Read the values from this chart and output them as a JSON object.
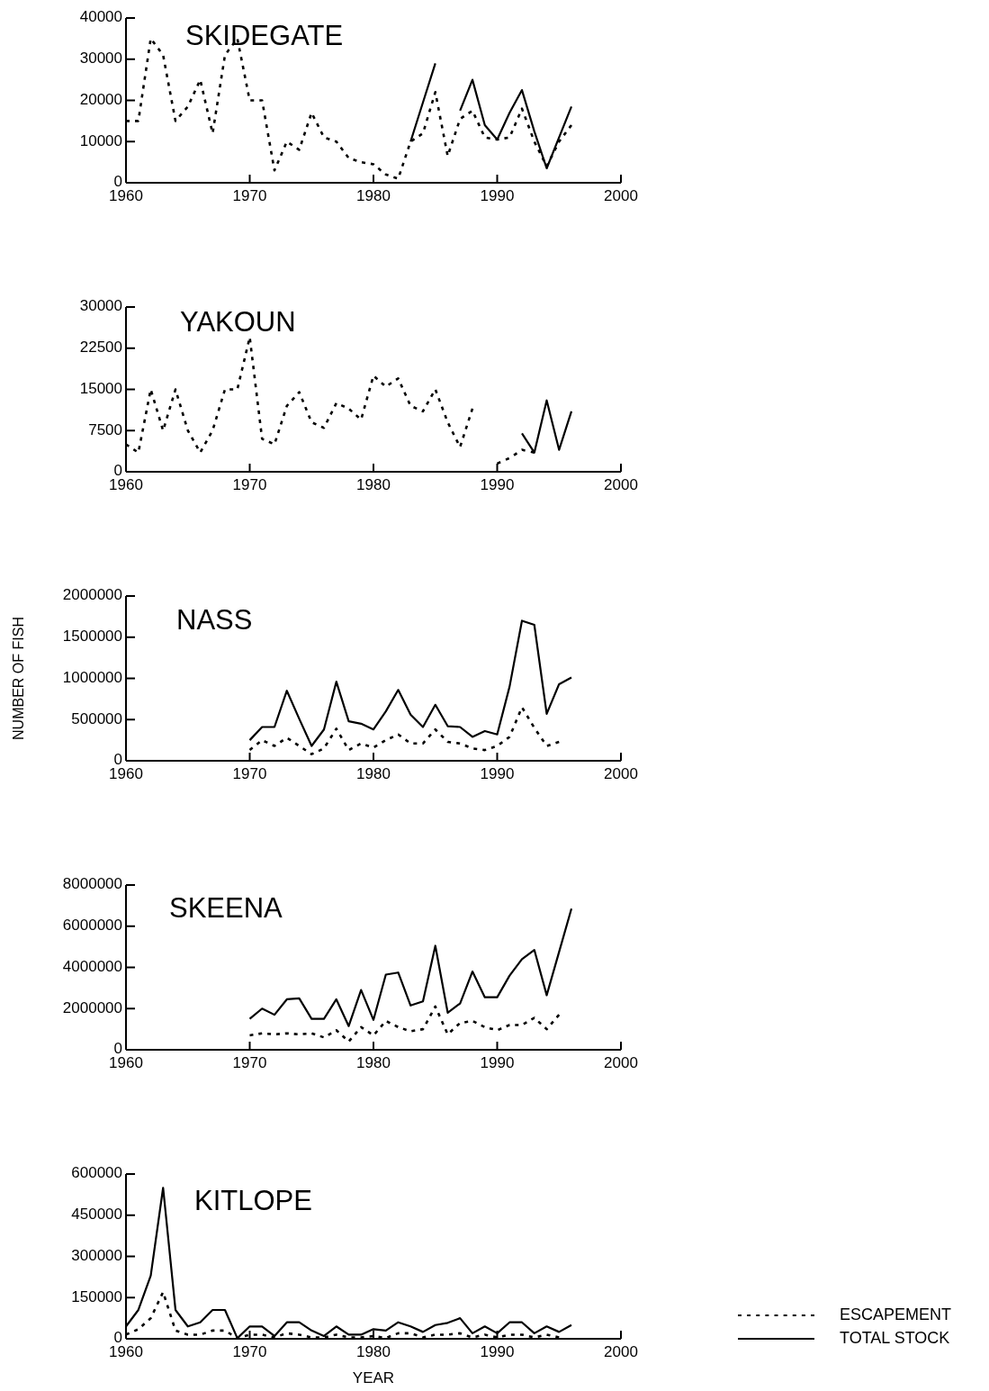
{
  "chart_data": [
    {
      "type": "line",
      "title": "SKIDEGATE",
      "x": [
        1960,
        1961,
        1962,
        1963,
        1964,
        1965,
        1966,
        1967,
        1968,
        1969,
        1970,
        1971,
        1972,
        1973,
        1974,
        1975,
        1976,
        1977,
        1978,
        1979,
        1980,
        1981,
        1982,
        1983,
        1984,
        1985,
        1986,
        1987,
        1988,
        1989,
        1990,
        1991,
        1992,
        1993,
        1994,
        1995,
        1996
      ],
      "series": [
        {
          "color": "#000000",
          "line_style": "dashed",
          "values": [
            15000,
            15000,
            35000,
            31000,
            15000,
            18500,
            25000,
            12000,
            31000,
            35000,
            20000,
            20000,
            3000,
            10000,
            8000,
            17000,
            11000,
            10000,
            6000,
            5000,
            4500,
            2000,
            1000,
            10000,
            12000,
            22000,
            6500,
            15500,
            17500,
            11000,
            10500,
            11000,
            18000,
            10000,
            4000,
            10000,
            14000
          ]
        },
        {
          "color": "#000000",
          "line_style": "solid",
          "values": [
            null,
            null,
            null,
            null,
            null,
            null,
            null,
            null,
            null,
            null,
            null,
            null,
            null,
            null,
            null,
            null,
            null,
            null,
            null,
            null,
            null,
            null,
            null,
            10000,
            19500,
            29000,
            null,
            17500,
            25000,
            14000,
            10500,
            17000,
            22500,
            12500,
            3500,
            11000,
            18500
          ]
        }
      ],
      "xlim": [
        1960,
        2000
      ],
      "xticks": [
        1960,
        1970,
        1980,
        1990,
        2000
      ],
      "ylim": [
        0,
        40000
      ],
      "yticks": [
        0,
        10000,
        20000,
        30000,
        40000
      ]
    },
    {
      "type": "line",
      "title": "YAKOUN",
      "series": [
        {
          "color": "#000000",
          "line_style": "dashed",
          "x": [
            1960,
            1961,
            1962,
            1963,
            1964,
            1965,
            1966,
            1967,
            1968,
            1969,
            1970,
            1971,
            1972,
            1973,
            1974,
            1975,
            1976,
            1977,
            1978,
            1979,
            1980,
            1981,
            1982,
            1983,
            1984,
            1985,
            1986,
            1987,
            1988
          ],
          "values": [
            5000,
            3500,
            15000,
            7500,
            15000,
            7500,
            3500,
            7500,
            15000,
            15000,
            24500,
            6000,
            5000,
            12000,
            14500,
            9000,
            8000,
            12500,
            11500,
            9500,
            17500,
            15500,
            17000,
            12000,
            11000,
            15000,
            9000,
            4500,
            11500
          ]
        },
        {
          "color": "#000000",
          "line_style": "dashed",
          "x": [
            1990,
            1991,
            1992,
            1993
          ],
          "values": [
            1500,
            2500,
            4000,
            3500
          ]
        },
        {
          "color": "#000000",
          "line_style": "solid",
          "x": [
            1992,
            1993,
            1994,
            1995,
            1996
          ],
          "values": [
            7000,
            3500,
            13000,
            4000,
            11000
          ]
        }
      ],
      "xlim": [
        1960,
        2000
      ],
      "xticks": [
        1960,
        1970,
        1980,
        1990,
        2000
      ],
      "ylim": [
        0,
        30000
      ],
      "yticks": [
        0,
        7500,
        15000,
        22500,
        30000
      ]
    },
    {
      "type": "line",
      "title": "NASS",
      "ylabel": "NUMBER OF FISH",
      "x": [
        1970,
        1971,
        1972,
        1973,
        1974,
        1975,
        1976,
        1977,
        1978,
        1979,
        1980,
        1981,
        1982,
        1983,
        1984,
        1985,
        1986,
        1987,
        1988,
        1989,
        1990,
        1991,
        1992,
        1993,
        1994,
        1995,
        1996
      ],
      "series": [
        {
          "color": "#000000",
          "line_style": "dashed",
          "values": [
            130000,
            250000,
            180000,
            280000,
            180000,
            80000,
            150000,
            390000,
            130000,
            210000,
            160000,
            250000,
            320000,
            210000,
            210000,
            380000,
            230000,
            210000,
            150000,
            130000,
            180000,
            290000,
            650000,
            400000,
            180000,
            230000,
            null
          ]
        },
        {
          "color": "#000000",
          "line_style": "solid",
          "values": [
            250000,
            410000,
            410000,
            850000,
            510000,
            180000,
            380000,
            960000,
            480000,
            450000,
            380000,
            600000,
            860000,
            560000,
            410000,
            680000,
            420000,
            410000,
            290000,
            360000,
            320000,
            900000,
            1700000,
            1650000,
            570000,
            930000,
            1010000
          ]
        }
      ],
      "xlim": [
        1960,
        2000
      ],
      "xticks": [
        1960,
        1970,
        1980,
        1990,
        2000
      ],
      "ylim": [
        0,
        2000000
      ],
      "yticks": [
        0,
        500000,
        1000000,
        1500000,
        2000000
      ]
    },
    {
      "type": "line",
      "title": "SKEENA",
      "x": [
        1970,
        1971,
        1972,
        1973,
        1974,
        1975,
        1976,
        1977,
        1978,
        1979,
        1980,
        1981,
        1982,
        1983,
        1984,
        1985,
        1986,
        1987,
        1988,
        1989,
        1990,
        1991,
        1992,
        1993,
        1994,
        1995,
        1996
      ],
      "series": [
        {
          "color": "#000000",
          "line_style": "dashed",
          "values": [
            700000,
            800000,
            750000,
            800000,
            750000,
            800000,
            600000,
            950000,
            400000,
            1100000,
            700000,
            1400000,
            1100000,
            900000,
            1000000,
            2100000,
            750000,
            1300000,
            1400000,
            1100000,
            950000,
            1200000,
            1200000,
            1550000,
            1000000,
            1700000,
            null
          ]
        },
        {
          "color": "#000000",
          "line_style": "solid",
          "values": [
            1500000,
            2000000,
            1700000,
            2450000,
            2500000,
            1500000,
            1500000,
            2450000,
            1150000,
            2900000,
            1450000,
            3650000,
            3750000,
            2150000,
            2350000,
            5050000,
            1800000,
            2250000,
            3800000,
            2550000,
            2550000,
            3600000,
            4400000,
            4850000,
            2650000,
            4750000,
            6850000
          ]
        }
      ],
      "xlim": [
        1960,
        2000
      ],
      "xticks": [
        1960,
        1970,
        1980,
        1990,
        2000
      ],
      "ylim": [
        0,
        8000000
      ],
      "yticks": [
        0,
        2000000,
        4000000,
        6000000,
        8000000
      ]
    },
    {
      "type": "line",
      "title": "KITLOPE",
      "xlabel": "YEAR",
      "x": [
        1960,
        1961,
        1962,
        1963,
        1964,
        1965,
        1966,
        1967,
        1968,
        1969,
        1970,
        1971,
        1972,
        1973,
        1974,
        1975,
        1976,
        1977,
        1978,
        1979,
        1980,
        1981,
        1982,
        1983,
        1984,
        1985,
        1986,
        1987,
        1988,
        1989,
        1990,
        1991,
        1992,
        1993,
        1994,
        1995,
        1996
      ],
      "series": [
        {
          "name": "ESCAPEMENT",
          "color": "#000000",
          "line_style": "dashed",
          "values": [
            15000,
            35000,
            75000,
            170000,
            30000,
            15000,
            15000,
            30000,
            30000,
            2000,
            15000,
            15000,
            5000,
            20000,
            15000,
            5000,
            5000,
            15000,
            5000,
            5000,
            10000,
            3000,
            20000,
            20000,
            5000,
            15000,
            15000,
            20000,
            5000,
            15000,
            5000,
            15000,
            15000,
            5000,
            15000,
            5000,
            null
          ]
        },
        {
          "name": "TOTAL STOCK",
          "color": "#000000",
          "line_style": "solid",
          "values": [
            45000,
            105000,
            230000,
            550000,
            105000,
            45000,
            60000,
            105000,
            105000,
            2000,
            45000,
            45000,
            10000,
            60000,
            60000,
            30000,
            10000,
            45000,
            15000,
            15000,
            35000,
            30000,
            60000,
            45000,
            25000,
            50000,
            58000,
            75000,
            20000,
            45000,
            20000,
            60000,
            60000,
            20000,
            45000,
            25000,
            50000
          ]
        }
      ],
      "xlim": [
        1960,
        2000
      ],
      "xticks": [
        1960,
        1970,
        1980,
        1990,
        2000
      ],
      "ylim": [
        0,
        600000
      ],
      "yticks": [
        0,
        150000,
        300000,
        450000,
        600000
      ],
      "legend": "bottom right"
    }
  ]
}
